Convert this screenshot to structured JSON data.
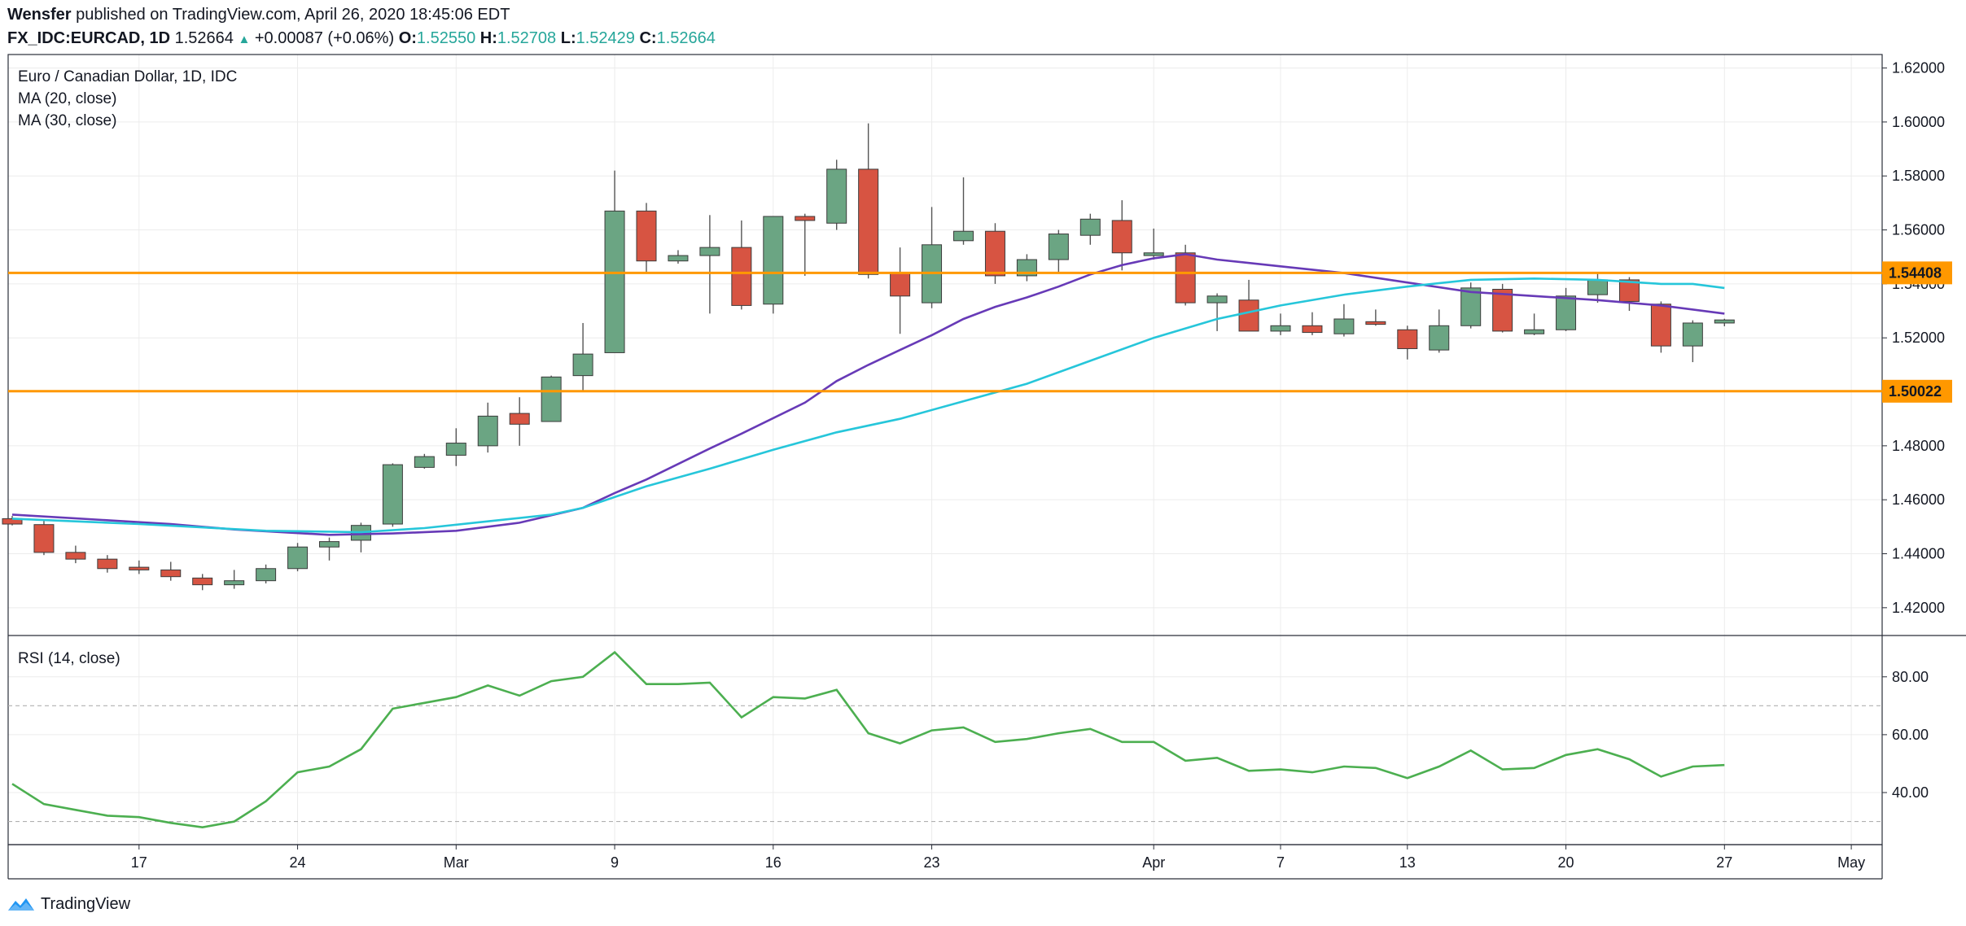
{
  "header": {
    "author": "Wensfer",
    "published_text": "published on TradingView.com, April 26, 2020 18:45:06 EDT",
    "symbol": "FX_IDC:EURCAD, 1D",
    "last": "1.52664",
    "change": "+0.00087 (+0.06%)",
    "o_label": "O:",
    "o": "1.52550",
    "h_label": "H:",
    "h": "1.52708",
    "l_label": "L:",
    "l": "1.52429",
    "c_label": "C:",
    "c": "1.52664"
  },
  "footer": {
    "brand": "TradingView"
  },
  "colors": {
    "up": "#6ba583",
    "down": "#d75442",
    "ma20": "#673ab7",
    "ma30": "#26c6da",
    "level": "#ff9800",
    "rsi": "#4caf50",
    "grid": "#ececec",
    "text": "#131722"
  },
  "chart_data": [
    {
      "type": "candlestick",
      "title": "Euro / Canadian Dollar, 1D, IDC",
      "indicators": [
        "MA (20, close)",
        "MA (30, close)"
      ],
      "ylim": [
        1.41,
        1.625
      ],
      "yticks": [
        "1.62000",
        "1.60000",
        "1.58000",
        "1.56000",
        "1.54000",
        "1.52000",
        "1.50000",
        "1.48000",
        "1.46000",
        "1.44000",
        "1.42000"
      ],
      "xticks": [
        {
          "i": 4,
          "label": "17"
        },
        {
          "i": 9,
          "label": "24"
        },
        {
          "i": 14,
          "label": "Mar"
        },
        {
          "i": 19,
          "label": "9"
        },
        {
          "i": 24,
          "label": "16"
        },
        {
          "i": 29,
          "label": "23"
        },
        {
          "i": 36,
          "label": "Apr"
        },
        {
          "i": 40,
          "label": "7"
        },
        {
          "i": 44,
          "label": "13"
        },
        {
          "i": 49,
          "label": "20"
        },
        {
          "i": 54,
          "label": "27"
        },
        {
          "i": 58,
          "label": "May"
        }
      ],
      "levels": [
        {
          "value": 1.54408,
          "label": "1.54408"
        },
        {
          "value": 1.50022,
          "label": "1.50022"
        }
      ],
      "candles": [
        {
          "i": 0,
          "o": 1.453,
          "h": 1.454,
          "l": 1.4505,
          "c": 1.451
        },
        {
          "i": 1,
          "o": 1.4508,
          "h": 1.4525,
          "l": 1.4395,
          "c": 1.4405
        },
        {
          "i": 2,
          "o": 1.4405,
          "h": 1.443,
          "l": 1.4365,
          "c": 1.438
        },
        {
          "i": 3,
          "o": 1.438,
          "h": 1.4395,
          "l": 1.433,
          "c": 1.4345
        },
        {
          "i": 4,
          "o": 1.435,
          "h": 1.4375,
          "l": 1.4325,
          "c": 1.434
        },
        {
          "i": 5,
          "o": 1.434,
          "h": 1.437,
          "l": 1.43,
          "c": 1.4315
        },
        {
          "i": 6,
          "o": 1.431,
          "h": 1.4325,
          "l": 1.4265,
          "c": 1.4285
        },
        {
          "i": 7,
          "o": 1.4285,
          "h": 1.434,
          "l": 1.427,
          "c": 1.43
        },
        {
          "i": 8,
          "o": 1.43,
          "h": 1.436,
          "l": 1.429,
          "c": 1.4345
        },
        {
          "i": 9,
          "o": 1.4345,
          "h": 1.444,
          "l": 1.4335,
          "c": 1.4425
        },
        {
          "i": 10,
          "o": 1.4425,
          "h": 1.446,
          "l": 1.4375,
          "c": 1.4445
        },
        {
          "i": 11,
          "o": 1.445,
          "h": 1.4515,
          "l": 1.4405,
          "c": 1.4505
        },
        {
          "i": 12,
          "o": 1.451,
          "h": 1.4735,
          "l": 1.45,
          "c": 1.473
        },
        {
          "i": 13,
          "o": 1.472,
          "h": 1.477,
          "l": 1.4715,
          "c": 1.476
        },
        {
          "i": 14,
          "o": 1.4765,
          "h": 1.4865,
          "l": 1.4725,
          "c": 1.481
        },
        {
          "i": 15,
          "o": 1.48,
          "h": 1.496,
          "l": 1.4775,
          "c": 1.491
        },
        {
          "i": 16,
          "o": 1.492,
          "h": 1.498,
          "l": 1.48,
          "c": 1.488
        },
        {
          "i": 17,
          "o": 1.489,
          "h": 1.506,
          "l": 1.489,
          "c": 1.5055
        },
        {
          "i": 18,
          "o": 1.506,
          "h": 1.5255,
          "l": 1.5005,
          "c": 1.514
        },
        {
          "i": 19,
          "o": 1.5145,
          "h": 1.582,
          "l": 1.5145,
          "c": 1.567
        },
        {
          "i": 20,
          "o": 1.567,
          "h": 1.57,
          "l": 1.544,
          "c": 1.5485
        },
        {
          "i": 21,
          "o": 1.5485,
          "h": 1.5525,
          "l": 1.5475,
          "c": 1.5505
        },
        {
          "i": 22,
          "o": 1.5505,
          "h": 1.5655,
          "l": 1.529,
          "c": 1.5535
        },
        {
          "i": 23,
          "o": 1.5535,
          "h": 1.5635,
          "l": 1.5305,
          "c": 1.532
        },
        {
          "i": 24,
          "o": 1.5325,
          "h": 1.565,
          "l": 1.529,
          "c": 1.565
        },
        {
          "i": 25,
          "o": 1.565,
          "h": 1.566,
          "l": 1.543,
          "c": 1.5635
        },
        {
          "i": 26,
          "o": 1.5625,
          "h": 1.586,
          "l": 1.56,
          "c": 1.5825
        },
        {
          "i": 27,
          "o": 1.5825,
          "h": 1.5995,
          "l": 1.542,
          "c": 1.5435
        },
        {
          "i": 28,
          "o": 1.544,
          "h": 1.5535,
          "l": 1.5215,
          "c": 1.5355
        },
        {
          "i": 29,
          "o": 1.533,
          "h": 1.5685,
          "l": 1.531,
          "c": 1.5545
        },
        {
          "i": 30,
          "o": 1.556,
          "h": 1.5795,
          "l": 1.5545,
          "c": 1.5595
        },
        {
          "i": 31,
          "o": 1.5595,
          "h": 1.5625,
          "l": 1.54,
          "c": 1.543
        },
        {
          "i": 32,
          "o": 1.543,
          "h": 1.551,
          "l": 1.541,
          "c": 1.549
        },
        {
          "i": 33,
          "o": 1.549,
          "h": 1.56,
          "l": 1.544,
          "c": 1.5585
        },
        {
          "i": 34,
          "o": 1.558,
          "h": 1.566,
          "l": 1.5545,
          "c": 1.564
        },
        {
          "i": 35,
          "o": 1.5635,
          "h": 1.571,
          "l": 1.545,
          "c": 1.5515
        },
        {
          "i": 36,
          "o": 1.5505,
          "h": 1.5605,
          "l": 1.549,
          "c": 1.5515
        },
        {
          "i": 37,
          "o": 1.5515,
          "h": 1.5545,
          "l": 1.532,
          "c": 1.533
        },
        {
          "i": 38,
          "o": 1.533,
          "h": 1.5365,
          "l": 1.5225,
          "c": 1.5355
        },
        {
          "i": 39,
          "o": 1.534,
          "h": 1.5415,
          "l": 1.5225,
          "c": 1.5225
        },
        {
          "i": 40,
          "o": 1.5225,
          "h": 1.529,
          "l": 1.521,
          "c": 1.5245
        },
        {
          "i": 41,
          "o": 1.5245,
          "h": 1.5295,
          "l": 1.521,
          "c": 1.522
        },
        {
          "i": 42,
          "o": 1.5215,
          "h": 1.5325,
          "l": 1.5205,
          "c": 1.527
        },
        {
          "i": 43,
          "o": 1.526,
          "h": 1.5305,
          "l": 1.5245,
          "c": 1.525
        },
        {
          "i": 44,
          "o": 1.523,
          "h": 1.5245,
          "l": 1.512,
          "c": 1.516
        },
        {
          "i": 45,
          "o": 1.5155,
          "h": 1.5305,
          "l": 1.5145,
          "c": 1.5245
        },
        {
          "i": 46,
          "o": 1.5245,
          "h": 1.5405,
          "l": 1.5235,
          "c": 1.5385
        },
        {
          "i": 47,
          "o": 1.538,
          "h": 1.54,
          "l": 1.522,
          "c": 1.5225
        },
        {
          "i": 48,
          "o": 1.5215,
          "h": 1.529,
          "l": 1.521,
          "c": 1.523
        },
        {
          "i": 49,
          "o": 1.523,
          "h": 1.5385,
          "l": 1.5225,
          "c": 1.5355
        },
        {
          "i": 50,
          "o": 1.536,
          "h": 1.544,
          "l": 1.533,
          "c": 1.5415
        },
        {
          "i": 51,
          "o": 1.5415,
          "h": 1.5425,
          "l": 1.53,
          "c": 1.5335
        },
        {
          "i": 52,
          "o": 1.5325,
          "h": 1.5335,
          "l": 1.5145,
          "c": 1.517
        },
        {
          "i": 53,
          "o": 1.517,
          "h": 1.5265,
          "l": 1.511,
          "c": 1.5255
        },
        {
          "i": 54,
          "o": 1.5255,
          "h": 1.52708,
          "l": 1.52429,
          "c": 1.52664
        }
      ],
      "series": [
        {
          "name": "MA (20, close)",
          "color": "#673ab7",
          "points": [
            [
              0,
              1.4545
            ],
            [
              5,
              1.451
            ],
            [
              7,
              1.449
            ],
            [
              10,
              1.447
            ],
            [
              12,
              1.4475
            ],
            [
              14,
              1.4485
            ],
            [
              16,
              1.4515
            ],
            [
              18,
              1.457
            ],
            [
              19,
              1.4625
            ],
            [
              20,
              1.4675
            ],
            [
              22,
              1.479
            ],
            [
              23,
              1.4845
            ],
            [
              25,
              1.496
            ],
            [
              26,
              1.504
            ],
            [
              27,
              1.51
            ],
            [
              28,
              1.5155
            ],
            [
              29,
              1.521
            ],
            [
              30,
              1.527
            ],
            [
              31,
              1.5315
            ],
            [
              32,
              1.535
            ],
            [
              33,
              1.539
            ],
            [
              34,
              1.5435
            ],
            [
              35,
              1.547
            ],
            [
              36,
              1.5495
            ],
            [
              37,
              1.551
            ],
            [
              38,
              1.549
            ],
            [
              40,
              1.5465
            ],
            [
              42,
              1.544
            ],
            [
              44,
              1.5405
            ],
            [
              46,
              1.537
            ],
            [
              48,
              1.5355
            ],
            [
              50,
              1.534
            ],
            [
              52,
              1.532
            ],
            [
              54,
              1.529
            ]
          ]
        },
        {
          "name": "MA (30, close)",
          "color": "#26c6da",
          "points": [
            [
              0,
              1.453
            ],
            [
              4,
              1.451
            ],
            [
              8,
              1.4485
            ],
            [
              11,
              1.448
            ],
            [
              13,
              1.4495
            ],
            [
              15,
              1.452
            ],
            [
              17,
              1.4545
            ],
            [
              18,
              1.457
            ],
            [
              20,
              1.465
            ],
            [
              22,
              1.4715
            ],
            [
              24,
              1.4785
            ],
            [
              26,
              1.485
            ],
            [
              28,
              1.49
            ],
            [
              30,
              1.4965
            ],
            [
              32,
              1.503
            ],
            [
              34,
              1.5115
            ],
            [
              36,
              1.52
            ],
            [
              38,
              1.527
            ],
            [
              40,
              1.532
            ],
            [
              42,
              1.536
            ],
            [
              44,
              1.539
            ],
            [
              46,
              1.5415
            ],
            [
              48,
              1.542
            ],
            [
              50,
              1.5415
            ],
            [
              52,
              1.54
            ],
            [
              53,
              1.54
            ],
            [
              54,
              1.5385
            ]
          ]
        }
      ]
    },
    {
      "type": "line",
      "title": "RSI (14, close)",
      "ylim": [
        22,
        94
      ],
      "yticks": [
        "80.00",
        "60.00",
        "40.00"
      ],
      "bands": [
        70,
        30
      ],
      "series": [
        {
          "name": "RSI (14, close)",
          "color": "#4caf50",
          "values": [
            43,
            36,
            34,
            32,
            31.5,
            29.5,
            28,
            30,
            37,
            47,
            49,
            55,
            69,
            71,
            73,
            77,
            73.5,
            78.5,
            80,
            88.5,
            77.5,
            77.5,
            78,
            66,
            73,
            72.5,
            75.5,
            60.5,
            57,
            61.5,
            62.5,
            57.5,
            58.5,
            60.5,
            62,
            57.5,
            57.5,
            51,
            52,
            47.5,
            48,
            47,
            49,
            48.5,
            45,
            49,
            54.5,
            48,
            48.5,
            53,
            55,
            51.5,
            45.5,
            49,
            49.5
          ]
        }
      ]
    }
  ]
}
